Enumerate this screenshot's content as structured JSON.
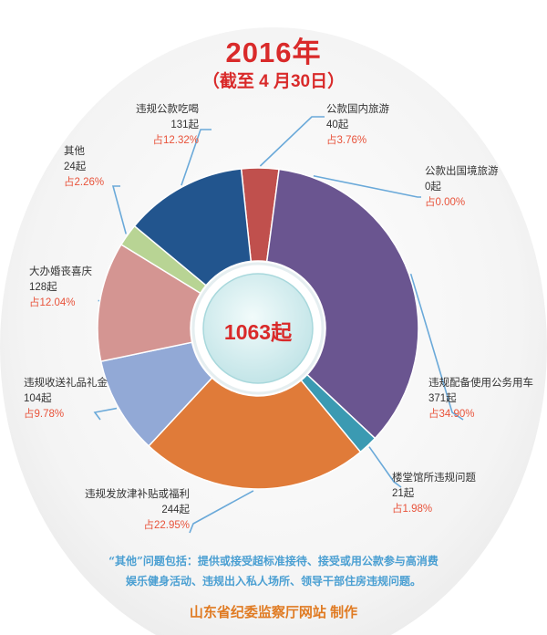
{
  "header": {
    "title": "2016年",
    "subtitle": "（截至 4 月30日）"
  },
  "chart_data": {
    "type": "pie",
    "donut": true,
    "total_label": "1063起",
    "categories": [
      {
        "key": "dining",
        "name": "违规公款吃喝",
        "count": "131起",
        "percent_label": "占12.32%",
        "value": 12.32,
        "color": "#22558e"
      },
      {
        "key": "travel",
        "name": "公款国内旅游",
        "count": "40起",
        "percent_label": "占3.76%",
        "value": 3.76,
        "color": "#c0504d"
      },
      {
        "key": "abroad",
        "name": "公款出国境旅游",
        "count": "0起",
        "percent_label": "占0.00%",
        "value": 0.0,
        "color": "#9bbb59"
      },
      {
        "key": "cars",
        "name": "违规配备使用公务用车",
        "count": "371起",
        "percent_label": "占34.90%",
        "value": 34.9,
        "color": "#6a5590"
      },
      {
        "key": "clubs",
        "name": "楼堂馆所违规问题",
        "count": "21起",
        "percent_label": "占1.98%",
        "value": 1.98,
        "color": "#3b9ab2"
      },
      {
        "key": "subsidy",
        "name": "违规发放津补贴或福利",
        "count": "244起",
        "percent_label": "占22.95%",
        "value": 22.95,
        "color": "#e07b39"
      },
      {
        "key": "gifts",
        "name": "违规收送礼品礼金",
        "count": "104起",
        "percent_label": "占9.78%",
        "value": 9.78,
        "color": "#92a9d6"
      },
      {
        "key": "weddings",
        "name": "大办婚丧喜庆",
        "count": "128起",
        "percent_label": "占12.04%",
        "value": 12.04,
        "color": "#d49592"
      },
      {
        "key": "other",
        "name": "其他",
        "count": "24起",
        "percent_label": "占2.26%",
        "value": 2.26,
        "color": "#b8d494"
      }
    ],
    "slice_order": [
      "travel",
      "cars",
      "clubs",
      "subsidy",
      "gifts",
      "weddings",
      "other",
      "dining"
    ]
  },
  "footer": {
    "note_line1": "“其他”问题包括：提供或接受超标准接待、接受或用公款参与高消费",
    "note_line2": "娱乐健身活动、违规出入私人场所、领导干部住房违规问题。",
    "credit": "山东省纪委监察厅网站  制作"
  }
}
